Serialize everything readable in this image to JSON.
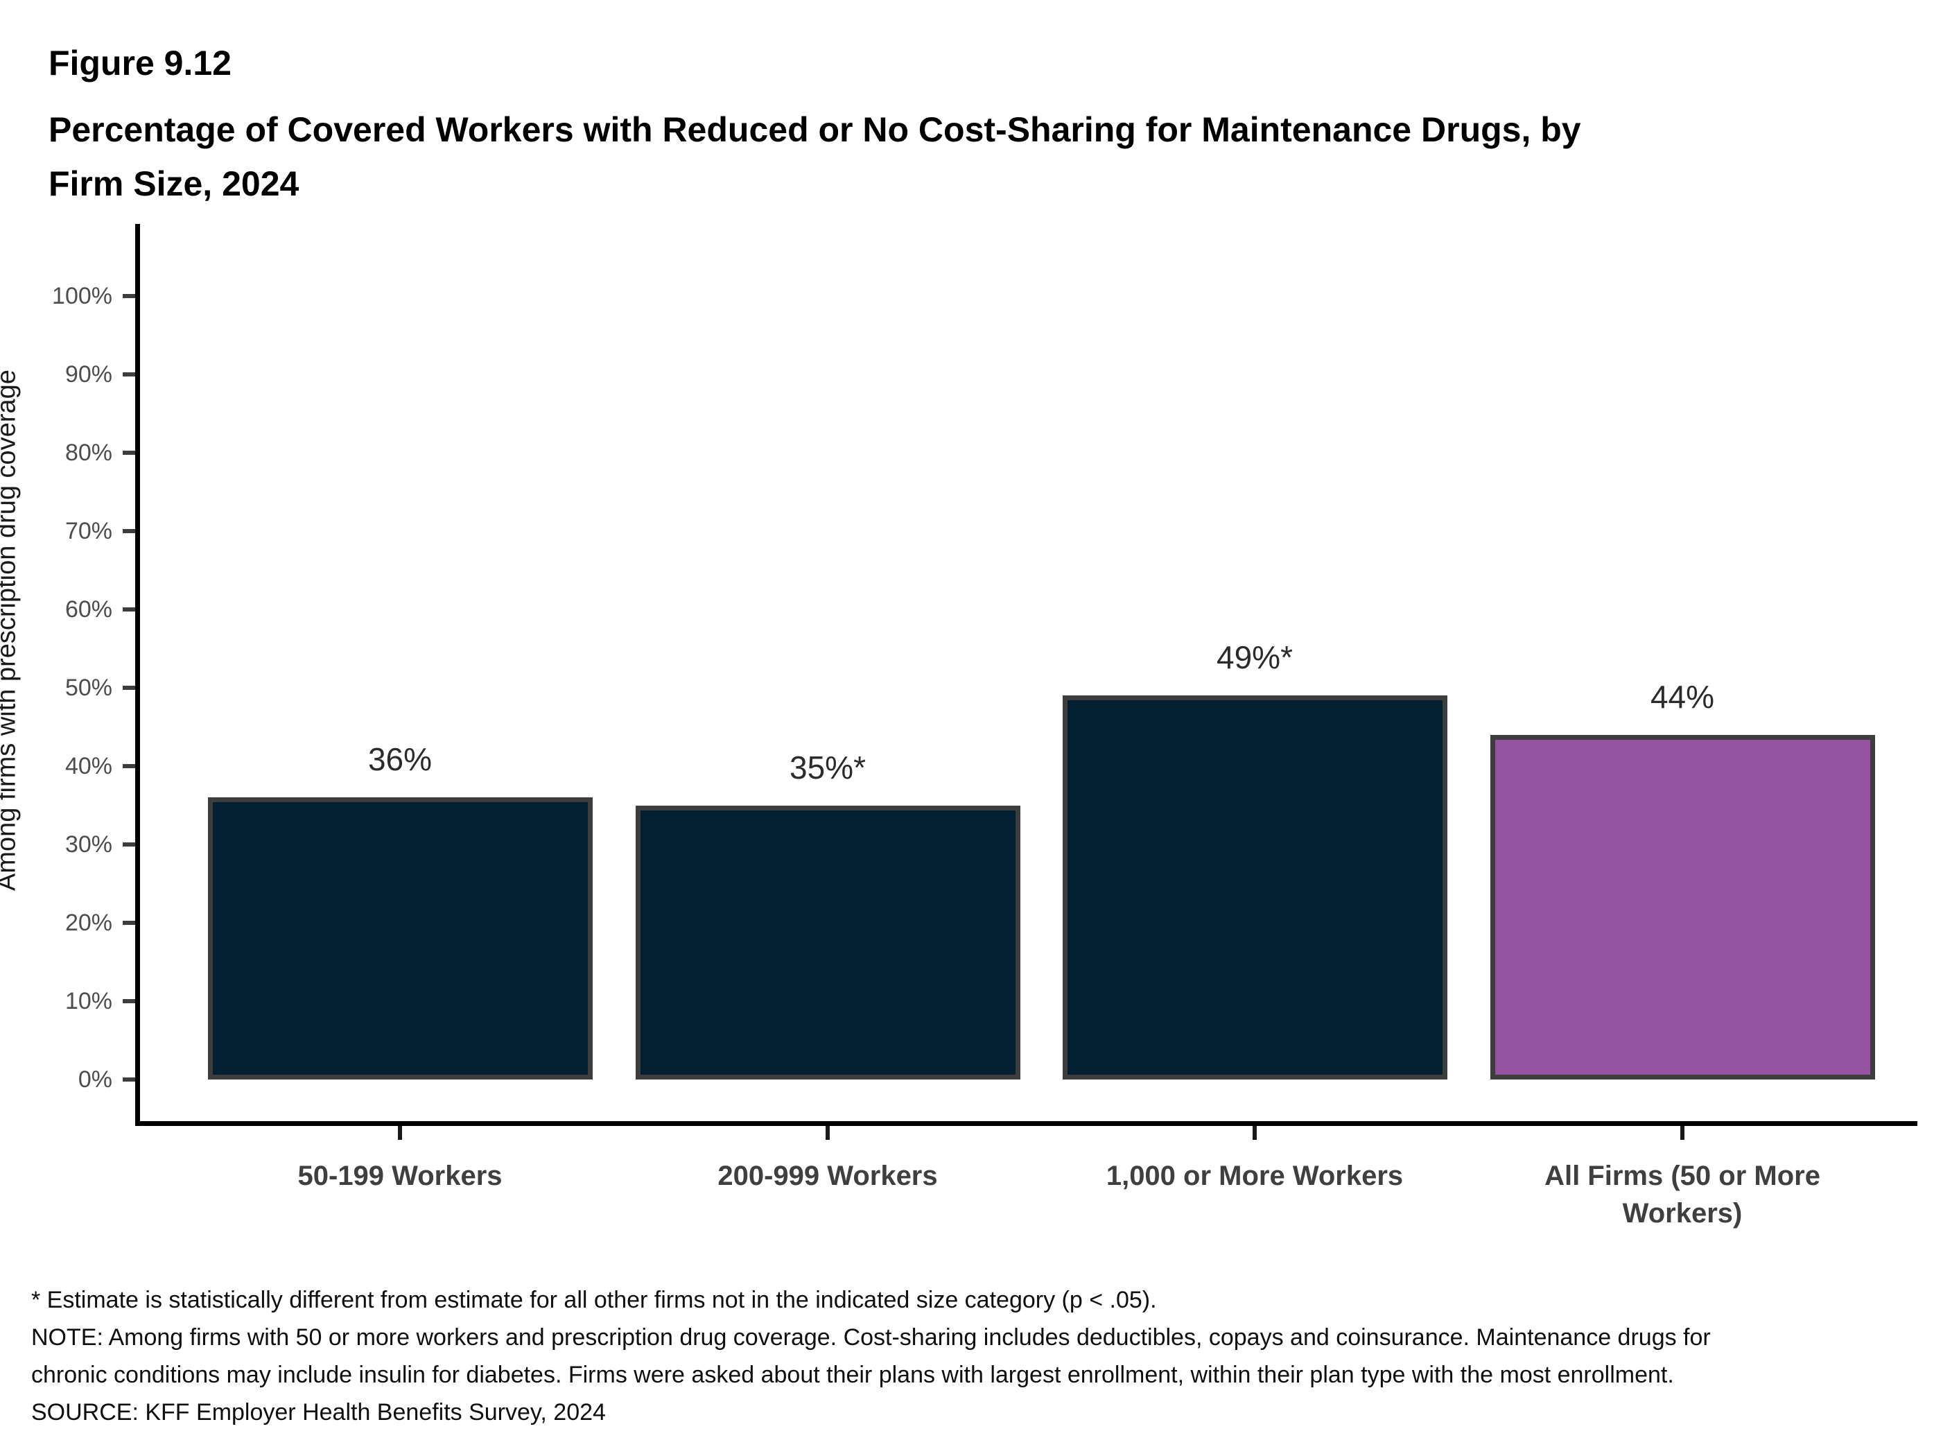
{
  "figure": {
    "label": "Figure 9.12",
    "title_lines": [
      "Percentage of Covered Workers with Reduced or No Cost-Sharing for Maintenance Drugs, by",
      "Firm Size, 2024"
    ]
  },
  "chart_data": {
    "type": "bar",
    "categories": [
      "50-199 Workers",
      "200-999 Workers",
      "1,000 or More Workers",
      "All Firms (50 or More Workers)"
    ],
    "values": [
      36,
      35,
      49,
      44
    ],
    "bar_labels": [
      "36%",
      "35%*",
      "49%*",
      "44%"
    ],
    "bar_colors": [
      "#032033",
      "#032033",
      "#032033",
      "#9452a0"
    ],
    "bar_border_color": "#3d3d3d",
    "title": "Percentage of Covered Workers with Reduced or No Cost-Sharing for Maintenance Drugs, by Firm Size, 2024",
    "xlabel": "",
    "ylabel": "Among firms with prescription drug coverage",
    "ylim": [
      0,
      100
    ],
    "yticks": [
      "0%",
      "10%",
      "20%",
      "30%",
      "40%",
      "50%",
      "60%",
      "70%",
      "80%",
      "90%",
      "100%"
    ],
    "grid": false,
    "legend_position": "none"
  },
  "footnotes": {
    "significance": "* Estimate is statistically different from estimate for all other firms not in the indicated size category (p < .05).",
    "note": "NOTE: Among firms with 50 or more workers and prescription drug coverage. Cost-sharing includes deductibles, copays and coinsurance. Maintenance drugs for chronic conditions may include insulin for diabetes. Firms were asked about their plans with largest enrollment, within their plan type with the most enrollment.",
    "source": "SOURCE: KFF Employer Health Benefits Survey, 2024"
  },
  "colors": {
    "background": "#ffffff",
    "axis_line": "#000000",
    "tick_mark": "#3d3d3d",
    "tick_label": "#4d4d4d",
    "category_label": "#3f3f3f",
    "value_label": "#2b2b2b",
    "navy": "#032033",
    "purple": "#9452a0"
  }
}
